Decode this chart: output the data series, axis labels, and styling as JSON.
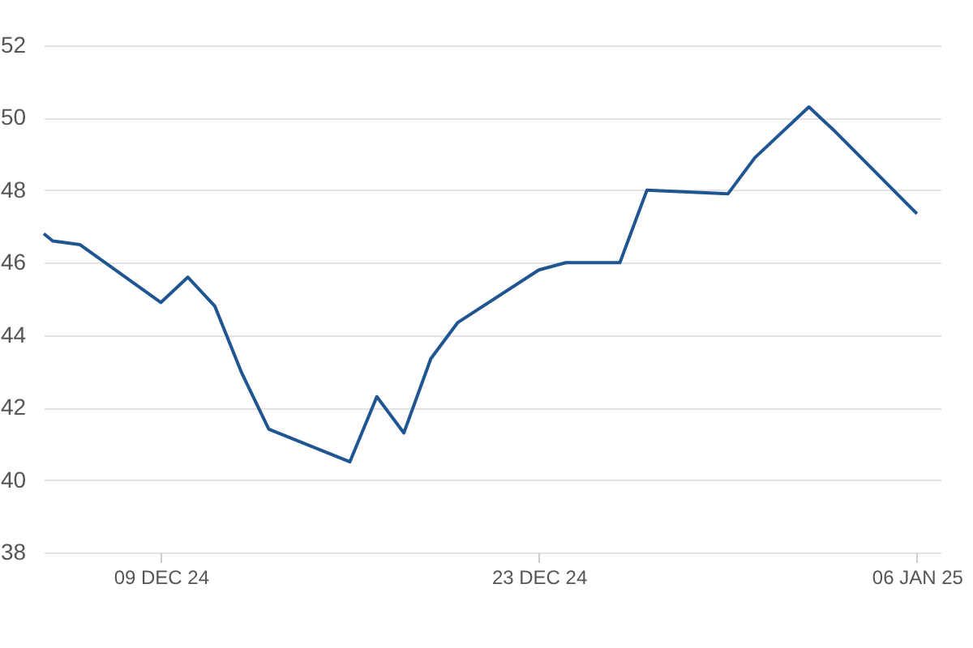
{
  "chart_data": {
    "type": "line",
    "x": [
      "2024-12-04T16:00",
      "2024-12-05",
      "2024-12-06",
      "2024-12-09",
      "2024-12-10",
      "2024-12-11",
      "2024-12-12",
      "2024-12-13",
      "2024-12-16",
      "2024-12-17",
      "2024-12-18",
      "2024-12-19",
      "2024-12-20",
      "2024-12-23",
      "2024-12-24",
      "2024-12-26",
      "2024-12-27",
      "2024-12-30",
      "2024-12-31",
      "2025-01-02",
      "2025-01-03",
      "2025-01-06"
    ],
    "series": [
      {
        "color": "#1f5591",
        "values": [
          46.8,
          46.6,
          46.5,
          44.9,
          45.6,
          44.8,
          42.95,
          41.4,
          40.5,
          42.3,
          41.3,
          43.35,
          44.35,
          45.8,
          46.0,
          46.0,
          48.0,
          47.9,
          48.9,
          50.3,
          49.6,
          47.35
        ]
      }
    ],
    "xlim": [
      "2024-12-04T16:00",
      "2025-01-06T21:00"
    ],
    "xticks": [
      {
        "value": "2024-12-09",
        "label": "09 DEC 24"
      },
      {
        "value": "2024-12-23",
        "label": "23 DEC 24"
      },
      {
        "value": "2025-01-06",
        "label": "06 JAN 25"
      }
    ],
    "ylim": [
      38,
      52
    ],
    "yticks": [
      38,
      40,
      42,
      44,
      46,
      48,
      50,
      52
    ],
    "grid": "y",
    "marker": "none",
    "line_style": "solid"
  }
}
